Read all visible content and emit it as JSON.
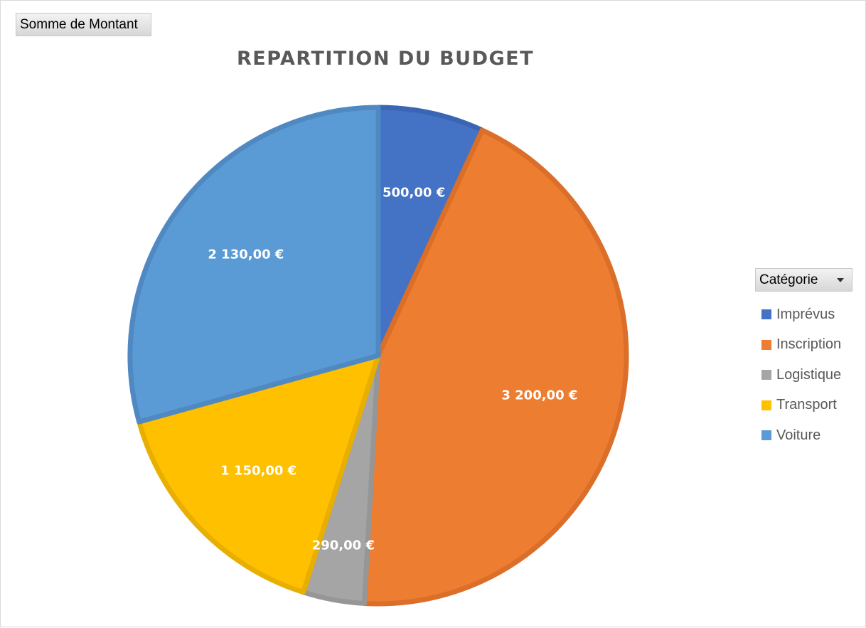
{
  "pivot": {
    "value_field_label": "Somme de Montant",
    "legend_field_label": "Catégorie"
  },
  "chart_data": {
    "type": "pie",
    "title": "REPARTITION DU BUDGET",
    "legend_placement": "right",
    "categories": [
      "Imprévus",
      "Inscription",
      "Logistique",
      "Transport",
      "Voiture"
    ],
    "values": [
      500,
      3200,
      290,
      1150,
      2130
    ],
    "data_labels": [
      "500,00 €",
      "3 200,00 €",
      "290,00 €",
      "1 150,00 €",
      "2 130,00 €"
    ],
    "colors": [
      "#4472C4",
      "#ED7D31",
      "#A5A5A5",
      "#FFC000",
      "#5B9BD5"
    ],
    "border_colors": [
      "#3A65B3",
      "#DB6E28",
      "#969696",
      "#E8AE00",
      "#5089C2"
    ]
  }
}
